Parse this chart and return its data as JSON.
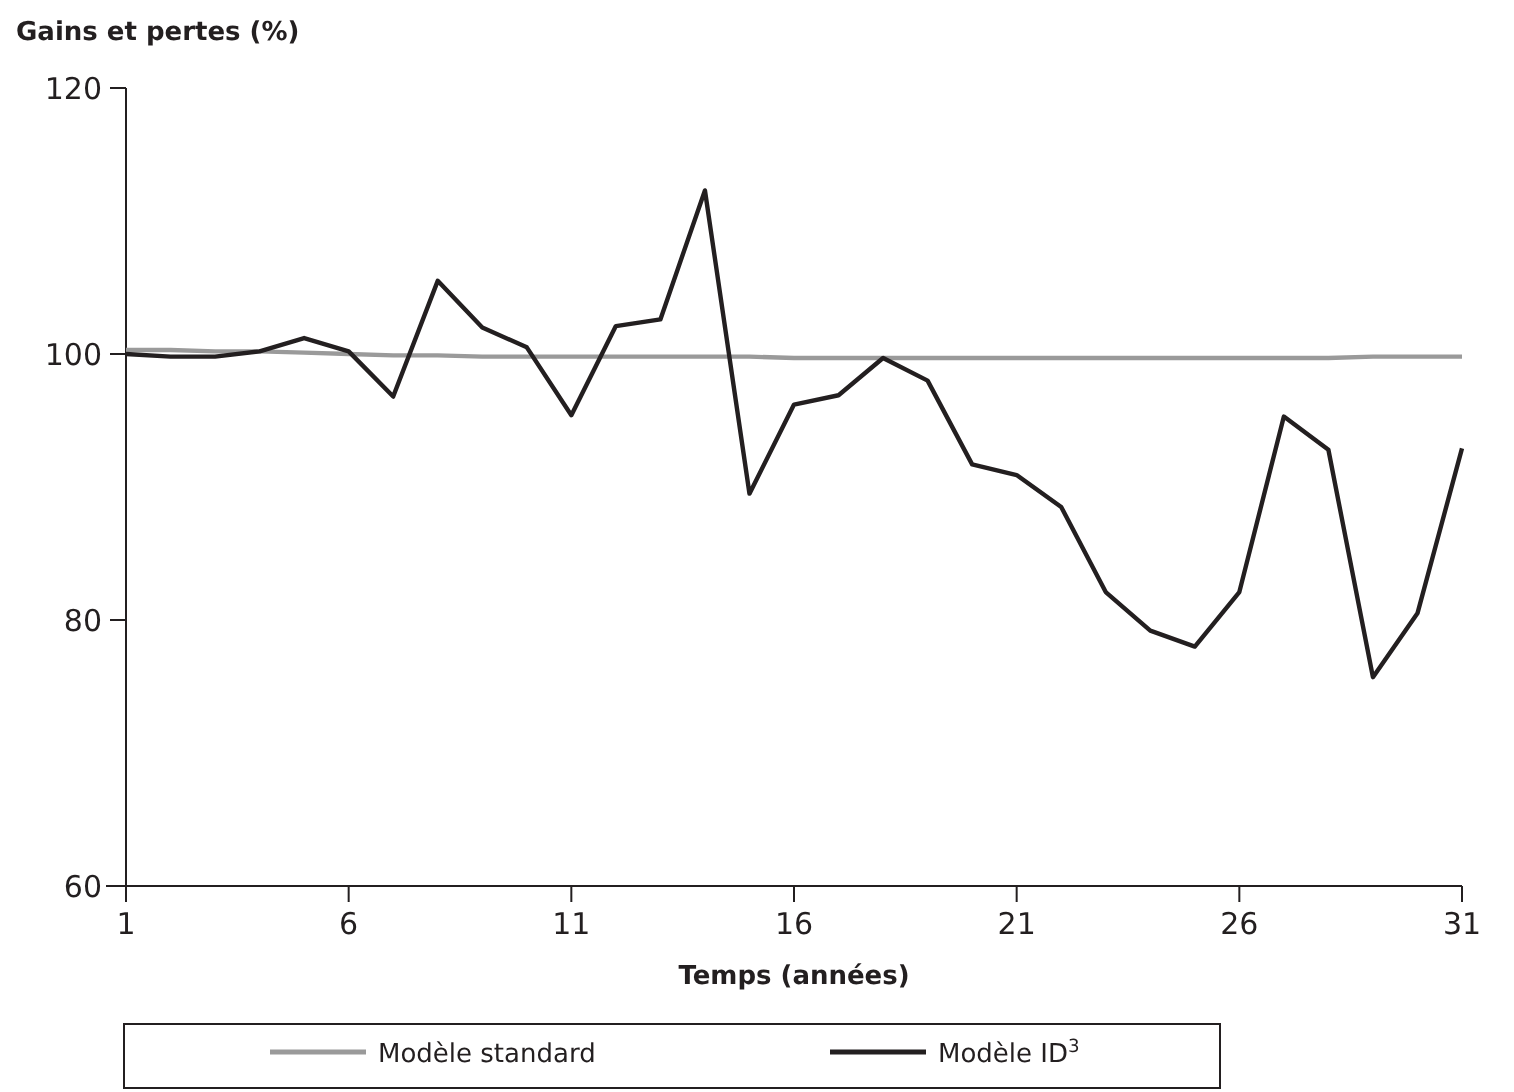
{
  "chart_data": {
    "type": "line",
    "ylabel": "Gains et pertes (%)",
    "xlabel": "Temps (années)",
    "x": [
      1,
      2,
      3,
      4,
      5,
      6,
      7,
      8,
      9,
      10,
      11,
      12,
      13,
      14,
      15,
      16,
      17,
      18,
      19,
      20,
      21,
      22,
      23,
      24,
      25,
      26,
      27,
      28,
      29,
      30,
      31
    ],
    "xlim": [
      1,
      31
    ],
    "xticks": [
      1,
      6,
      11,
      16,
      21,
      26,
      31
    ],
    "ylim": [
      60,
      120
    ],
    "yticks": [
      60,
      80,
      100,
      120
    ],
    "series": [
      {
        "name": "Modèle standard",
        "color": "#9a9a9a",
        "values": [
          100.3,
          100.3,
          100.2,
          100.2,
          100.1,
          100.0,
          99.9,
          99.9,
          99.8,
          99.8,
          99.8,
          99.8,
          99.8,
          99.8,
          99.8,
          99.7,
          99.7,
          99.7,
          99.7,
          99.7,
          99.7,
          99.7,
          99.7,
          99.7,
          99.7,
          99.7,
          99.7,
          99.7,
          99.8,
          99.8,
          99.8
        ]
      },
      {
        "name": "Modèle ID$^{3}$",
        "color": "#231f20",
        "values": [
          100,
          99.8,
          99.8,
          100.2,
          101.2,
          100.2,
          96.8,
          105.5,
          102,
          100.5,
          95.4,
          102.1,
          102.6,
          112.3,
          89.5,
          96.2,
          96.9,
          99.7,
          98,
          91.7,
          90.9,
          88.5,
          82.1,
          79.2,
          78,
          82.1,
          95.3,
          92.8,
          75.7,
          80.5,
          92.9
        ]
      }
    ],
    "legend": "bottom",
    "grid": false,
    "line_style": "solid",
    "marker": "none"
  }
}
